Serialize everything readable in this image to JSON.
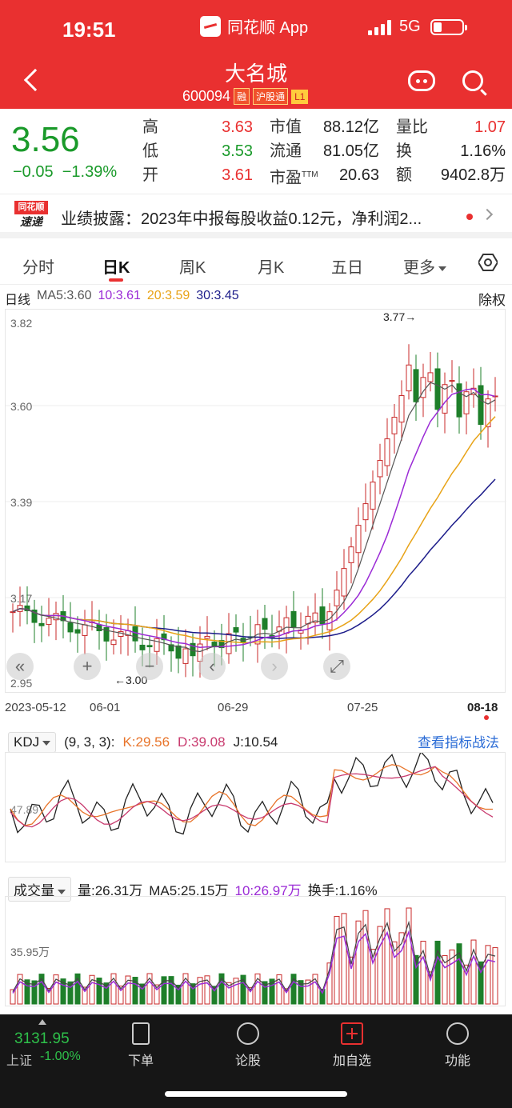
{
  "status": {
    "time": "19:51",
    "app": "同花顺 App",
    "network": "5G"
  },
  "header": {
    "name": "大名城",
    "code": "600094",
    "tags": [
      "融",
      "沪股通",
      "L1"
    ]
  },
  "quote": {
    "price": "3.56",
    "change": "−0.05",
    "change_pct": "−1.39%",
    "rows": [
      {
        "l1": "高",
        "v1": "3.63",
        "l2": "市值",
        "v2": "88.12亿",
        "l3": "量比",
        "v3": "1.07"
      },
      {
        "l1": "低",
        "v1": "3.53",
        "l2": "流通",
        "v2": "81.05亿",
        "l3": "换",
        "v3": "1.16%"
      },
      {
        "l1": "开",
        "v1": "3.61",
        "l2": "市盈",
        "l2sup": "TTM",
        "v2": "20.63",
        "l3": "额",
        "v3": "9402.8万"
      }
    ]
  },
  "news": {
    "logo_top": "同花顺",
    "logo_bottom": "速递",
    "text": "业绩披露：2023年中报每股收益0.12元，净利润2..."
  },
  "tabs": [
    "分时",
    "日K",
    "周K",
    "月K",
    "五日",
    "更多"
  ],
  "ma": {
    "label": "日线",
    "ma5": "MA5:3.60",
    "ma10": "10:3.61",
    "ma20": "20:3.59",
    "ma30": "30:3.45",
    "right": "除权"
  },
  "colors": {
    "ma5": "#555555",
    "ma10": "#9b2bd6",
    "ma20": "#e8a317",
    "ma30": "#1c1c8a",
    "up": "#c82a2a",
    "down": "#1e7f2a"
  },
  "kline": {
    "y_ticks": [
      "3.82",
      "3.60",
      "3.39",
      "3.17",
      "2.95"
    ],
    "high_mark": "3.77→",
    "low_mark": "←3.00",
    "dates": [
      "2023-05-12",
      "06-01",
      "06-29",
      "07-25",
      "08-18"
    ]
  },
  "kdj": {
    "name": "KDJ",
    "params": "(9, 3, 3):",
    "k": "K:29.56",
    "d": "D:39.08",
    "j": "J:10.54",
    "level": "47.89",
    "link": "查看指标战法"
  },
  "volume": {
    "name": "成交量",
    "vol": "量:26.31万",
    "ma5": "MA5:25.15万",
    "ma10": "10:26.97万",
    "turnover": "换手:1.16%",
    "level": "35.95万"
  },
  "bottom": {
    "index_value": "3131.95",
    "index_name": "上证",
    "index_pct": "-1.00%",
    "items": [
      "下单",
      "论股",
      "加自选",
      "功能"
    ]
  }
}
